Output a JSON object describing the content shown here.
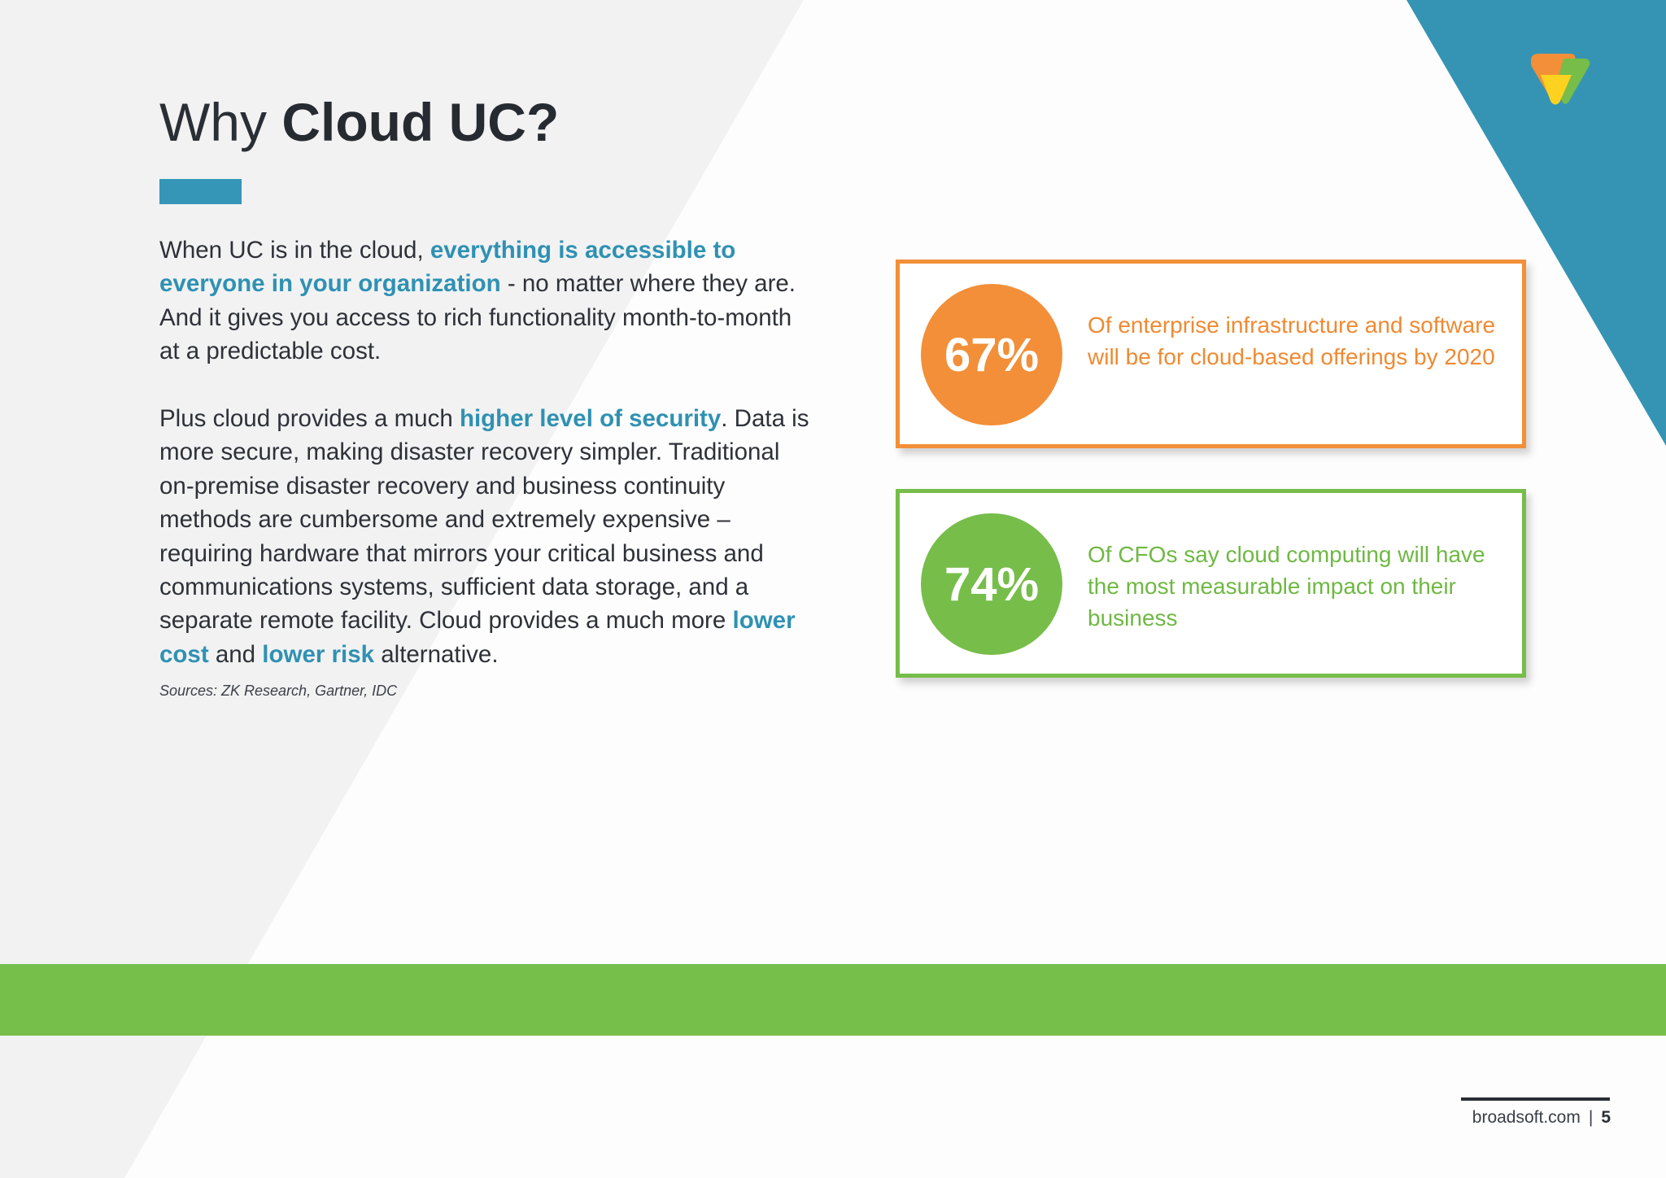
{
  "colors": {
    "accent_blue": "#3596b8",
    "orange": "#f28f38",
    "green": "#76bd4a",
    "corner_teal": "#3594b4",
    "text_dark": "#2a2e35"
  },
  "heading": {
    "prefix": "Why ",
    "emphasis": "Cloud UC?"
  },
  "paragraph1": {
    "t1": "When UC is in the cloud, ",
    "h1": "everything is accessible to everyone in your organization",
    "t2": " - no matter where they are. And it gives you access to rich functionality month-to-month at a predictable cost."
  },
  "paragraph2": {
    "t1": "Plus cloud provides a much ",
    "h1": "higher level of security",
    "t2": ". Data is more secure, making disaster recovery simpler. Traditional on-premise disaster recovery and business continuity methods are cumbersome and extremely expensive – requiring hardware that mirrors your critical business and communications systems, sufficient data storage, and a separate remote facility. Cloud provides a much more ",
    "h2": "lower cost",
    "t3": " and ",
    "h3": "lower risk",
    "t4": " alternative."
  },
  "sources": "Sources: ZK Research, Gartner, IDC",
  "stats": [
    {
      "value": "67%",
      "percent": 67,
      "text": "Of enterprise infrastructure and software will be for cloud-based offerings by 2020",
      "color": "orange"
    },
    {
      "value": "74%",
      "percent": 74,
      "text": "Of CFOs say cloud computing will have the most measurable impact on their business",
      "color": "green"
    }
  ],
  "logo": {
    "icon": "broadsoft-logo-icon"
  },
  "footer": {
    "site": "broadsoft.com",
    "separator": "|",
    "page": "5"
  }
}
